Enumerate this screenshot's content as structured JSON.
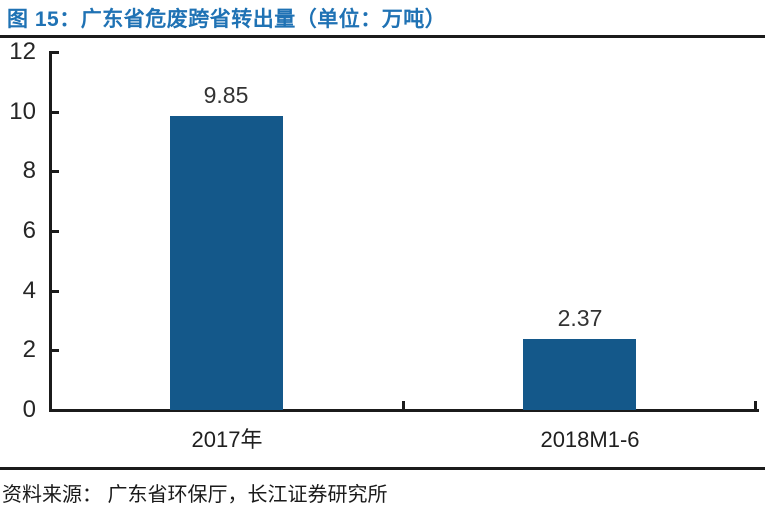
{
  "figure": {
    "title": "图 15：广东省危废跨省转出量（单位：万吨）",
    "source_note": "资料来源： 广东省环保厅，长江证券研究所"
  },
  "colors": {
    "title_blue": "#1F72B4",
    "bar_blue": "#14588A",
    "axis_black": "#1b1b1b"
  },
  "chart_data": {
    "type": "bar",
    "title": "广东省危废跨省转出量（单位：万吨）",
    "categories": [
      "2017年",
      "2018M1-6"
    ],
    "values": [
      9.85,
      2.37
    ],
    "value_labels": [
      "9.85",
      "2.37"
    ],
    "yticks": [
      0,
      2,
      4,
      6,
      8,
      10,
      12
    ],
    "ylim": [
      0,
      12
    ],
    "xlabel": "",
    "ylabel": "",
    "grid": false,
    "legend": "none"
  }
}
